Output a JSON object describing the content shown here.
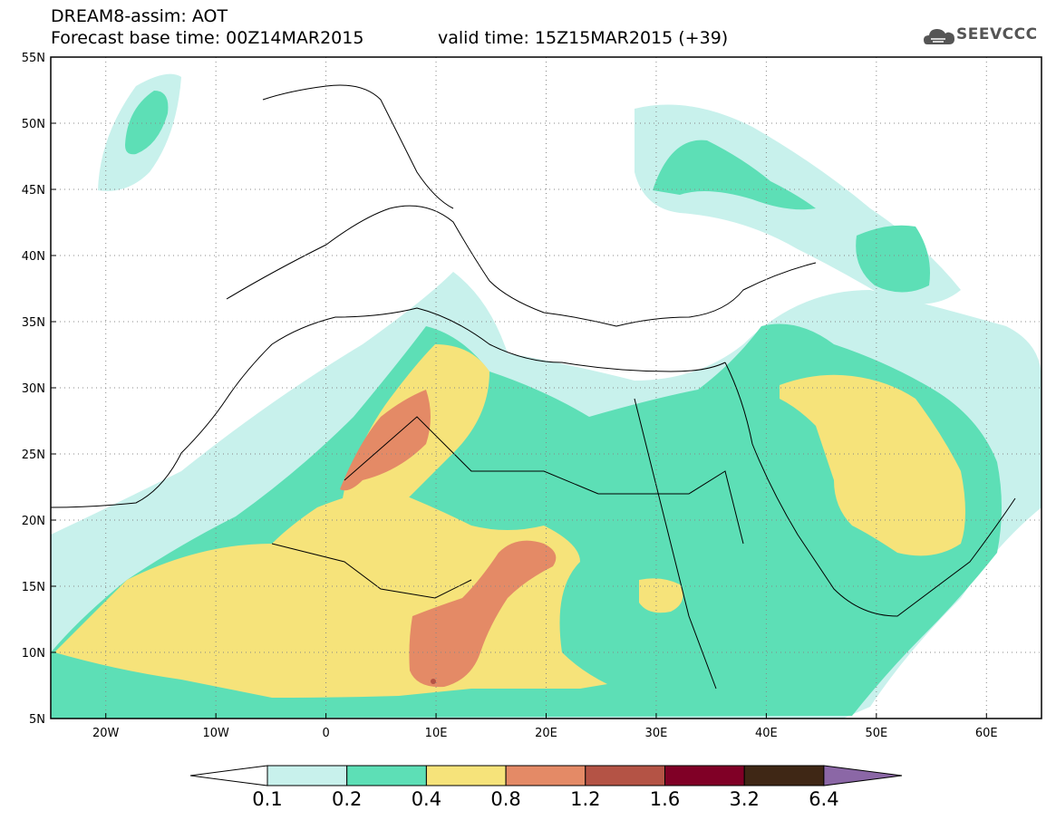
{
  "header": {
    "line1": "DREAM8-assim: AOT",
    "line2": "Forecast base time: 00Z14MAR2015",
    "valid": "valid time: 15Z15MAR2015 (+39)",
    "logo_text": "SEEVCCC",
    "logo_icon": "cloud-icon"
  },
  "axes": {
    "lat_labels": [
      "55N",
      "50N",
      "45N",
      "40N",
      "35N",
      "30N",
      "25N",
      "20N",
      "15N",
      "10N",
      "5N"
    ],
    "lon_labels": [
      "20W",
      "10W",
      "0",
      "10E",
      "20E",
      "30E",
      "40E",
      "50E",
      "60E"
    ],
    "lon_range": [
      -25,
      65
    ],
    "lat_range": [
      5,
      55
    ]
  },
  "colorbar": {
    "labels": [
      "0.1",
      "0.2",
      "0.4",
      "0.8",
      "1.2",
      "1.6",
      "3.2",
      "6.4"
    ],
    "colors": [
      "#ffffff",
      "#c8f1ec",
      "#5ddfb6",
      "#f6e37a",
      "#e48a66",
      "#b45345",
      "#800026",
      "#3f2715",
      "#8b67a6"
    ]
  },
  "chart_data": {
    "type": "heatmap",
    "variable": "AOT",
    "levels": [
      0.1,
      0.2,
      0.4,
      0.8,
      1.2,
      1.6,
      3.2,
      6.4
    ],
    "regions": [
      {
        "level": 0.1,
        "area": "North Atlantic near 50N 18W"
      },
      {
        "level": 0.2,
        "area": "Central Sahara 20N 5W-15E"
      },
      {
        "level": 0.4,
        "area": "Algeria/Libya 28N 5E"
      },
      {
        "level": 0.8,
        "area": "Chad/Niger 12N 12E"
      },
      {
        "level": 0.8,
        "area": "Algeria 26N 6E"
      },
      {
        "level": 0.4,
        "area": "Arabian Peninsula 22N 50E"
      }
    ]
  }
}
